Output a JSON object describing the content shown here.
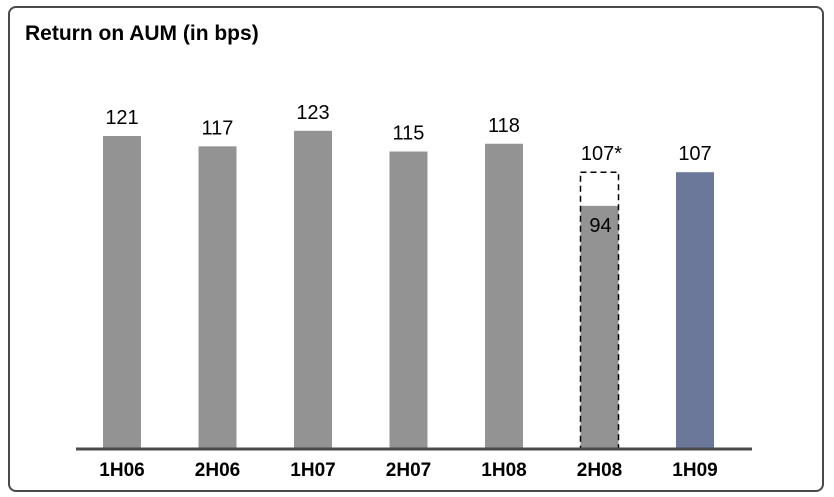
{
  "chart_data": {
    "type": "bar",
    "title": "Return on AUM (in bps)",
    "xlabel": "",
    "ylabel": "",
    "categories": [
      "1H06",
      "2H06",
      "1H07",
      "2H07",
      "1H08",
      "2H08",
      "1H09"
    ],
    "values": [
      121,
      117,
      123,
      115,
      118,
      94,
      107
    ],
    "value_labels": [
      "121",
      "117",
      "123",
      "115",
      "118",
      "94",
      "107"
    ],
    "ylim": [
      0,
      130
    ],
    "grid": false,
    "colors": {
      "default": "#939393",
      "highlight": "#6c7899",
      "axis": "#4a4a4a"
    },
    "highlight_index": 6,
    "adjusted": {
      "index": 5,
      "value": 107,
      "label": "107*",
      "style": "dashed-outline"
    }
  }
}
